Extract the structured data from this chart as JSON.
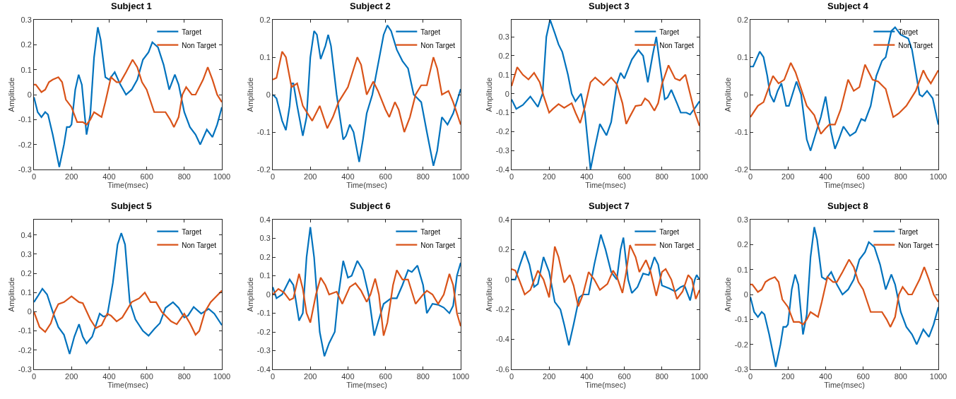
{
  "chart_data": [
    {
      "type": "line",
      "title": "Subject 1",
      "xlabel": "Time(msec)",
      "ylabel": "Amplitude",
      "xlim": [
        0,
        1000
      ],
      "xticks": [
        0,
        200,
        400,
        600,
        800,
        1000
      ],
      "ylim": [
        -0.3,
        0.3
      ],
      "yticks": [
        -0.3,
        -0.2,
        -0.1,
        0,
        0.1,
        0.2,
        0.3
      ],
      "legend": "top right",
      "series": [
        {
          "name": "Target",
          "color": "#0072bd",
          "x": [
            0,
            20,
            40,
            60,
            75,
            100,
            135,
            160,
            175,
            190,
            200,
            220,
            238,
            255,
            280,
            300,
            320,
            340,
            355,
            380,
            400,
            430,
            460,
            490,
            520,
            550,
            580,
            610,
            630,
            660,
            690,
            720,
            750,
            770,
            800,
            830,
            860,
            885,
            920,
            950,
            975,
            1000
          ],
          "values": [
            -0.01,
            -0.07,
            -0.09,
            -0.07,
            -0.08,
            -0.16,
            -0.29,
            -0.2,
            -0.13,
            -0.13,
            -0.12,
            0.02,
            0.08,
            0.04,
            -0.16,
            -0.08,
            0.15,
            0.27,
            0.22,
            0.07,
            0.06,
            0.09,
            0.04,
            0.0,
            0.02,
            0.06,
            0.14,
            0.17,
            0.21,
            0.19,
            0.12,
            0.02,
            0.08,
            0.04,
            -0.07,
            -0.13,
            -0.16,
            -0.2,
            -0.14,
            -0.17,
            -0.12,
            -0.05
          ]
        },
        {
          "name": "Non Target",
          "color": "#d95319",
          "x": [
            0,
            10,
            40,
            60,
            80,
            100,
            130,
            150,
            170,
            200,
            230,
            260,
            280,
            300,
            320,
            340,
            360,
            380,
            410,
            440,
            460,
            490,
            525,
            550,
            575,
            600,
            640,
            670,
            700,
            725,
            745,
            770,
            790,
            810,
            840,
            860,
            900,
            925,
            950,
            975,
            1000
          ],
          "values": [
            0.04,
            0.04,
            0.01,
            0.02,
            0.05,
            0.06,
            0.07,
            0.05,
            -0.02,
            -0.05,
            -0.11,
            -0.11,
            -0.12,
            -0.1,
            -0.07,
            -0.08,
            -0.09,
            -0.03,
            0.07,
            0.05,
            0.05,
            0.09,
            0.14,
            0.11,
            0.05,
            0.02,
            -0.07,
            -0.07,
            -0.07,
            -0.1,
            -0.13,
            -0.09,
            0.0,
            0.03,
            0.0,
            0.0,
            0.06,
            0.11,
            0.06,
            0.0,
            -0.03
          ]
        }
      ]
    },
    {
      "type": "line",
      "title": "Subject 2",
      "xlabel": "Time(msec)",
      "ylabel": "Amplitude",
      "xlim": [
        0,
        1000
      ],
      "xticks": [
        0,
        200,
        400,
        600,
        800,
        1000
      ],
      "ylim": [
        -0.2,
        0.2
      ],
      "yticks": [
        -0.2,
        -0.1,
        0,
        0.1,
        0.2
      ],
      "legend": "top right",
      "series": [
        {
          "name": "Target",
          "color": "#0072bd",
          "x": [
            0,
            20,
            50,
            70,
            90,
            100,
            110,
            130,
            160,
            180,
            200,
            220,
            235,
            255,
            280,
            295,
            310,
            340,
            375,
            390,
            410,
            430,
            460,
            480,
            500,
            530,
            560,
            590,
            610,
            630,
            660,
            690,
            720,
            750,
            770,
            790,
            820,
            855,
            875,
            900,
            930,
            960,
            1000
          ],
          "values": [
            0.0,
            -0.01,
            -0.07,
            -0.095,
            -0.03,
            0.03,
            0.03,
            -0.03,
            -0.11,
            -0.06,
            0.1,
            0.17,
            0.16,
            0.095,
            0.13,
            0.16,
            0.13,
            0.0,
            -0.12,
            -0.11,
            -0.08,
            -0.1,
            -0.18,
            -0.12,
            -0.05,
            0.0,
            0.08,
            0.16,
            0.185,
            0.17,
            0.12,
            0.09,
            0.07,
            0.0,
            -0.01,
            -0.02,
            -0.1,
            -0.19,
            -0.15,
            -0.06,
            -0.08,
            -0.05,
            0.015
          ]
        },
        {
          "name": "Non Target",
          "color": "#d95319",
          "x": [
            0,
            20,
            50,
            70,
            100,
            130,
            160,
            210,
            250,
            290,
            320,
            350,
            400,
            450,
            470,
            500,
            535,
            560,
            600,
            620,
            650,
            670,
            700,
            730,
            760,
            790,
            820,
            855,
            875,
            900,
            935,
            960,
            1000
          ],
          "values": [
            0.04,
            0.045,
            0.115,
            0.1,
            0.02,
            0.03,
            -0.03,
            -0.07,
            -0.03,
            -0.09,
            -0.06,
            -0.02,
            0.02,
            0.1,
            0.08,
            0.0,
            0.035,
            0.01,
            -0.04,
            -0.06,
            -0.02,
            -0.04,
            -0.1,
            -0.06,
            0.0,
            0.025,
            0.025,
            0.1,
            0.07,
            0.0,
            0.01,
            -0.02,
            -0.08
          ]
        }
      ]
    },
    {
      "type": "line",
      "title": "Subject 3",
      "xlabel": "Time(msec)",
      "ylabel": "Amplitude",
      "xlim": [
        0,
        1000
      ],
      "xticks": [
        0,
        200,
        400,
        600,
        800,
        1000
      ],
      "ylim": [
        -0.4,
        0.39
      ],
      "yticks": [
        -0.4,
        -0.3,
        -0.2,
        -0.1,
        0,
        0.1,
        0.2,
        0.3
      ],
      "legend": "top right",
      "series": [
        {
          "name": "Target",
          "color": "#0072bd",
          "x": [
            0,
            25,
            60,
            100,
            140,
            165,
            185,
            205,
            230,
            250,
            270,
            300,
            320,
            340,
            370,
            390,
            420,
            440,
            470,
            505,
            530,
            560,
            580,
            600,
            640,
            675,
            700,
            725,
            750,
            770,
            790,
            815,
            830,
            850,
            880,
            900,
            930,
            950,
            980,
            1000
          ],
          "values": [
            -0.03,
            -0.08,
            -0.06,
            -0.015,
            -0.07,
            0.0,
            0.3,
            0.39,
            0.32,
            0.26,
            0.22,
            0.1,
            0.0,
            -0.04,
            0.0,
            -0.1,
            -0.4,
            -0.3,
            -0.16,
            -0.22,
            -0.15,
            0.05,
            0.11,
            0.08,
            0.18,
            0.23,
            0.2,
            0.06,
            0.2,
            0.3,
            0.15,
            -0.03,
            -0.02,
            0.02,
            -0.05,
            -0.1,
            -0.1,
            -0.11,
            -0.07,
            -0.04
          ]
        },
        {
          "name": "Non Target",
          "color": "#d95319",
          "x": [
            0,
            30,
            60,
            90,
            120,
            150,
            170,
            200,
            220,
            250,
            280,
            320,
            340,
            365,
            390,
            420,
            445,
            490,
            530,
            560,
            590,
            610,
            630,
            660,
            690,
            710,
            730,
            760,
            780,
            800,
            835,
            870,
            895,
            925,
            950,
            975,
            1000
          ],
          "values": [
            0.04,
            0.14,
            0.1,
            0.075,
            0.11,
            0.06,
            -0.01,
            -0.1,
            -0.08,
            -0.055,
            -0.075,
            -0.05,
            -0.1,
            -0.155,
            -0.07,
            0.06,
            0.085,
            0.045,
            0.085,
            0.05,
            -0.05,
            -0.16,
            -0.12,
            -0.065,
            -0.06,
            -0.025,
            -0.04,
            -0.09,
            -0.05,
            0.05,
            0.15,
            0.08,
            0.07,
            0.1,
            0.0,
            -0.1,
            -0.17
          ]
        }
      ]
    },
    {
      "type": "line",
      "title": "Subject 4",
      "xlabel": "Time(msec)",
      "ylabel": "Amplitude",
      "xlim": [
        0,
        1000
      ],
      "xticks": [
        0,
        200,
        400,
        600,
        800,
        1000
      ],
      "ylim": [
        -0.2,
        0.2
      ],
      "yticks": [
        -0.2,
        -0.1,
        0,
        0.1,
        0.2
      ],
      "legend": "top right",
      "series": [
        {
          "name": "Target",
          "color": "#0072bd",
          "x": [
            0,
            15,
            50,
            70,
            90,
            105,
            125,
            145,
            165,
            190,
            205,
            245,
            270,
            300,
            320,
            350,
            375,
            400,
            430,
            450,
            470,
            495,
            530,
            560,
            590,
            610,
            640,
            670,
            700,
            720,
            750,
            770,
            800,
            840,
            860,
            900,
            915,
            940,
            970,
            1000
          ],
          "values": [
            0.075,
            0.075,
            0.115,
            0.1,
            0.05,
            0.0,
            -0.02,
            0.01,
            0.03,
            -0.03,
            -0.03,
            0.035,
            0.0,
            -0.12,
            -0.15,
            -0.1,
            -0.06,
            -0.005,
            -0.1,
            -0.145,
            -0.12,
            -0.085,
            -0.11,
            -0.1,
            -0.065,
            -0.07,
            -0.03,
            0.05,
            0.09,
            0.1,
            0.17,
            0.18,
            0.16,
            0.15,
            0.12,
            0.0,
            -0.005,
            0.01,
            -0.01,
            -0.08
          ]
        },
        {
          "name": "Non Target",
          "color": "#d95319",
          "x": [
            0,
            40,
            70,
            120,
            150,
            180,
            215,
            240,
            300,
            340,
            375,
            400,
            420,
            450,
            480,
            520,
            550,
            580,
            610,
            650,
            680,
            720,
            760,
            790,
            830,
            880,
            920,
            940,
            960,
            1000
          ],
          "values": [
            -0.06,
            -0.03,
            -0.02,
            0.05,
            0.03,
            0.04,
            0.085,
            0.06,
            -0.03,
            -0.055,
            -0.105,
            -0.09,
            -0.08,
            -0.08,
            -0.04,
            0.04,
            0.01,
            0.02,
            0.08,
            0.04,
            0.035,
            0.015,
            -0.06,
            -0.05,
            -0.03,
            0.01,
            0.065,
            0.045,
            0.03,
            0.065
          ]
        }
      ]
    },
    {
      "type": "line",
      "title": "Subject 5",
      "xlabel": "Time(msec)",
      "ylabel": "Amplitude",
      "xlim": [
        0,
        1000
      ],
      "xticks": [
        0,
        200,
        400,
        600,
        800,
        1000
      ],
      "ylim": [
        -0.3,
        0.48
      ],
      "yticks": [
        -0.3,
        -0.2,
        -0.1,
        0,
        0.1,
        0.2,
        0.3,
        0.4
      ],
      "legend": "top right",
      "series": [
        {
          "name": "Target",
          "color": "#0072bd",
          "x": [
            0,
            20,
            45,
            70,
            100,
            130,
            160,
            190,
            215,
            240,
            260,
            280,
            310,
            350,
            370,
            390,
            420,
            445,
            465,
            485,
            510,
            540,
            580,
            610,
            640,
            670,
            700,
            740,
            770,
            800,
            820,
            850,
            890,
            930,
            960,
            1000
          ],
          "values": [
            0.05,
            0.08,
            0.12,
            0.09,
            0.0,
            -0.08,
            -0.12,
            -0.22,
            -0.13,
            -0.065,
            -0.13,
            -0.165,
            -0.13,
            -0.01,
            -0.025,
            -0.02,
            0.15,
            0.35,
            0.41,
            0.35,
            0.05,
            -0.04,
            -0.1,
            -0.125,
            -0.09,
            -0.06,
            0.02,
            0.05,
            0.02,
            -0.03,
            -0.02,
            0.025,
            -0.01,
            0.015,
            -0.01,
            -0.07
          ]
        },
        {
          "name": "Non Target",
          "color": "#d95319",
          "x": [
            0,
            30,
            60,
            90,
            110,
            130,
            160,
            200,
            240,
            260,
            300,
            330,
            360,
            390,
            410,
            440,
            470,
            520,
            560,
            590,
            620,
            650,
            680,
            730,
            760,
            800,
            830,
            860,
            880,
            910,
            940,
            970,
            1000
          ],
          "values": [
            0.0,
            -0.08,
            -0.105,
            -0.06,
            0.0,
            0.04,
            0.05,
            0.08,
            0.05,
            0.045,
            -0.04,
            -0.085,
            -0.07,
            -0.01,
            -0.02,
            -0.05,
            -0.03,
            0.05,
            0.07,
            0.1,
            0.05,
            0.05,
            0.0,
            -0.05,
            -0.065,
            -0.01,
            -0.06,
            -0.12,
            -0.1,
            0.0,
            0.05,
            0.08,
            0.11
          ]
        }
      ]
    },
    {
      "type": "line",
      "title": "Subject 6",
      "xlabel": "Time(msec)",
      "ylabel": "Amplitude",
      "xlim": [
        0,
        1000
      ],
      "xticks": [
        0,
        200,
        400,
        600,
        800,
        1000
      ],
      "ylim": [
        -0.4,
        0.4
      ],
      "yticks": [
        -0.4,
        -0.3,
        -0.2,
        -0.1,
        0,
        0.1,
        0.2,
        0.3,
        0.4
      ],
      "legend": "top right",
      "series": [
        {
          "name": "Target",
          "color": "#0072bd",
          "x": [
            0,
            20,
            50,
            90,
            110,
            140,
            160,
            180,
            200,
            220,
            250,
            275,
            300,
            330,
            350,
            375,
            400,
            420,
            450,
            480,
            510,
            540,
            560,
            590,
            630,
            660,
            690,
            720,
            740,
            770,
            800,
            820,
            850,
            880,
            910,
            940,
            960,
            980,
            1000
          ],
          "values": [
            0.04,
            -0.02,
            0.0,
            0.08,
            0.05,
            -0.14,
            -0.1,
            0.2,
            0.36,
            0.2,
            -0.2,
            -0.33,
            -0.26,
            -0.2,
            0.0,
            0.18,
            0.09,
            0.1,
            0.18,
            0.13,
            0.0,
            -0.22,
            -0.15,
            -0.05,
            -0.02,
            -0.02,
            0.05,
            0.13,
            0.12,
            0.155,
            0.05,
            -0.1,
            -0.05,
            -0.055,
            -0.07,
            -0.1,
            -0.06,
            0.1,
            0.17
          ]
        },
        {
          "name": "Non Target",
          "color": "#d95319",
          "x": [
            0,
            30,
            60,
            90,
            110,
            140,
            160,
            180,
            200,
            230,
            255,
            280,
            300,
            340,
            370,
            410,
            440,
            470,
            500,
            520,
            545,
            565,
            590,
            610,
            640,
            660,
            690,
            720,
            760,
            800,
            820,
            850,
            880,
            910,
            940,
            960,
            980,
            1000
          ],
          "values": [
            0.0,
            0.03,
            0.01,
            -0.03,
            -0.02,
            0.11,
            0.03,
            -0.1,
            -0.15,
            0.0,
            0.09,
            0.05,
            0.0,
            0.015,
            -0.05,
            0.04,
            0.06,
            0.02,
            -0.04,
            0.0,
            0.085,
            0.0,
            -0.22,
            -0.15,
            0.05,
            0.13,
            0.08,
            0.08,
            -0.05,
            0.0,
            0.02,
            0.0,
            -0.05,
            0.0,
            0.11,
            0.05,
            -0.1,
            -0.17
          ]
        }
      ]
    },
    {
      "type": "line",
      "title": "Subject 7",
      "xlabel": "Time(msec)",
      "ylabel": "Amplitude",
      "xlim": [
        0,
        1000
      ],
      "xticks": [
        0,
        200,
        400,
        600,
        800,
        1000
      ],
      "ylim": [
        -0.6,
        0.4
      ],
      "yticks": [
        -0.6,
        -0.4,
        -0.2,
        0,
        0.2,
        0.4
      ],
      "legend": "top right",
      "series": [
        {
          "name": "Target",
          "color": "#0072bd",
          "x": [
            0,
            20,
            45,
            70,
            95,
            120,
            140,
            170,
            200,
            230,
            260,
            280,
            305,
            330,
            360,
            380,
            410,
            440,
            475,
            500,
            530,
            560,
            580,
            595,
            620,
            640,
            670,
            700,
            730,
            760,
            780,
            800,
            840,
            870,
            900,
            920,
            950,
            975,
            985,
            1000
          ],
          "values": [
            0.0,
            0.0,
            0.1,
            0.19,
            0.1,
            -0.05,
            -0.03,
            0.15,
            0.05,
            -0.15,
            -0.2,
            -0.3,
            -0.44,
            -0.3,
            -0.12,
            -0.1,
            -0.1,
            0.1,
            0.3,
            0.2,
            0.05,
            0.0,
            0.2,
            0.28,
            0.0,
            -0.09,
            -0.05,
            0.04,
            0.03,
            0.15,
            0.1,
            -0.04,
            -0.06,
            -0.08,
            -0.05,
            -0.04,
            -0.14,
            0.0,
            0.03,
            0.0
          ]
        },
        {
          "name": "Non Target",
          "color": "#d95319",
          "x": [
            0,
            20,
            40,
            70,
            100,
            140,
            170,
            200,
            230,
            250,
            280,
            310,
            330,
            355,
            380,
            410,
            440,
            470,
            510,
            540,
            560,
            590,
            610,
            630,
            660,
            680,
            715,
            740,
            770,
            800,
            820,
            850,
            880,
            910,
            940,
            960,
            980,
            1000
          ],
          "values": [
            0.07,
            0.06,
            0.0,
            -0.1,
            -0.07,
            0.06,
            0.0,
            -0.12,
            0.22,
            0.15,
            -0.02,
            0.03,
            -0.04,
            -0.18,
            -0.1,
            0.05,
            0.0,
            -0.07,
            -0.03,
            0.06,
            0.02,
            -0.09,
            0.05,
            0.23,
            0.15,
            0.05,
            0.13,
            0.05,
            -0.11,
            0.05,
            0.07,
            0.0,
            -0.13,
            -0.08,
            0.03,
            0.0,
            -0.13,
            -0.07
          ]
        }
      ]
    },
    {
      "type": "line",
      "title": "Subject 8",
      "xlabel": "Time(msec)",
      "ylabel": "Amplitude",
      "xlim": [
        0,
        1000
      ],
      "xticks": [
        0,
        200,
        400,
        600,
        800,
        1000
      ],
      "ylim": [
        -0.3,
        0.3
      ],
      "yticks": [
        -0.3,
        -0.2,
        -0.1,
        0,
        0.1,
        0.2,
        0.3
      ],
      "legend": "top right",
      "series": [
        {
          "name": "Target",
          "color": "#0072bd",
          "x": [
            0,
            20,
            40,
            60,
            75,
            100,
            135,
            160,
            175,
            190,
            200,
            220,
            238,
            255,
            280,
            300,
            320,
            340,
            355,
            380,
            400,
            430,
            460,
            490,
            520,
            550,
            580,
            610,
            630,
            660,
            690,
            720,
            750,
            770,
            800,
            830,
            860,
            885,
            920,
            950,
            975,
            1000
          ],
          "values": [
            -0.01,
            -0.07,
            -0.09,
            -0.07,
            -0.08,
            -0.16,
            -0.29,
            -0.2,
            -0.13,
            -0.13,
            -0.12,
            0.02,
            0.08,
            0.04,
            -0.16,
            -0.08,
            0.15,
            0.27,
            0.22,
            0.07,
            0.06,
            0.09,
            0.04,
            0.0,
            0.02,
            0.06,
            0.14,
            0.17,
            0.21,
            0.19,
            0.12,
            0.02,
            0.08,
            0.04,
            -0.07,
            -0.13,
            -0.16,
            -0.2,
            -0.14,
            -0.17,
            -0.12,
            -0.05
          ]
        },
        {
          "name": "Non Target",
          "color": "#d95319",
          "x": [
            0,
            10,
            40,
            60,
            80,
            100,
            130,
            150,
            170,
            200,
            230,
            260,
            280,
            300,
            320,
            340,
            360,
            380,
            410,
            440,
            460,
            490,
            525,
            550,
            575,
            600,
            640,
            670,
            700,
            725,
            745,
            770,
            790,
            810,
            840,
            860,
            900,
            925,
            950,
            975,
            1000
          ],
          "values": [
            0.04,
            0.04,
            0.01,
            0.02,
            0.05,
            0.06,
            0.07,
            0.05,
            -0.02,
            -0.05,
            -0.11,
            -0.11,
            -0.12,
            -0.1,
            -0.07,
            -0.08,
            -0.09,
            -0.03,
            0.07,
            0.05,
            0.05,
            0.09,
            0.14,
            0.11,
            0.05,
            0.02,
            -0.07,
            -0.07,
            -0.07,
            -0.1,
            -0.13,
            -0.09,
            0.0,
            0.03,
            0.0,
            0.0,
            0.06,
            0.11,
            0.06,
            0.0,
            -0.03
          ]
        }
      ]
    }
  ]
}
